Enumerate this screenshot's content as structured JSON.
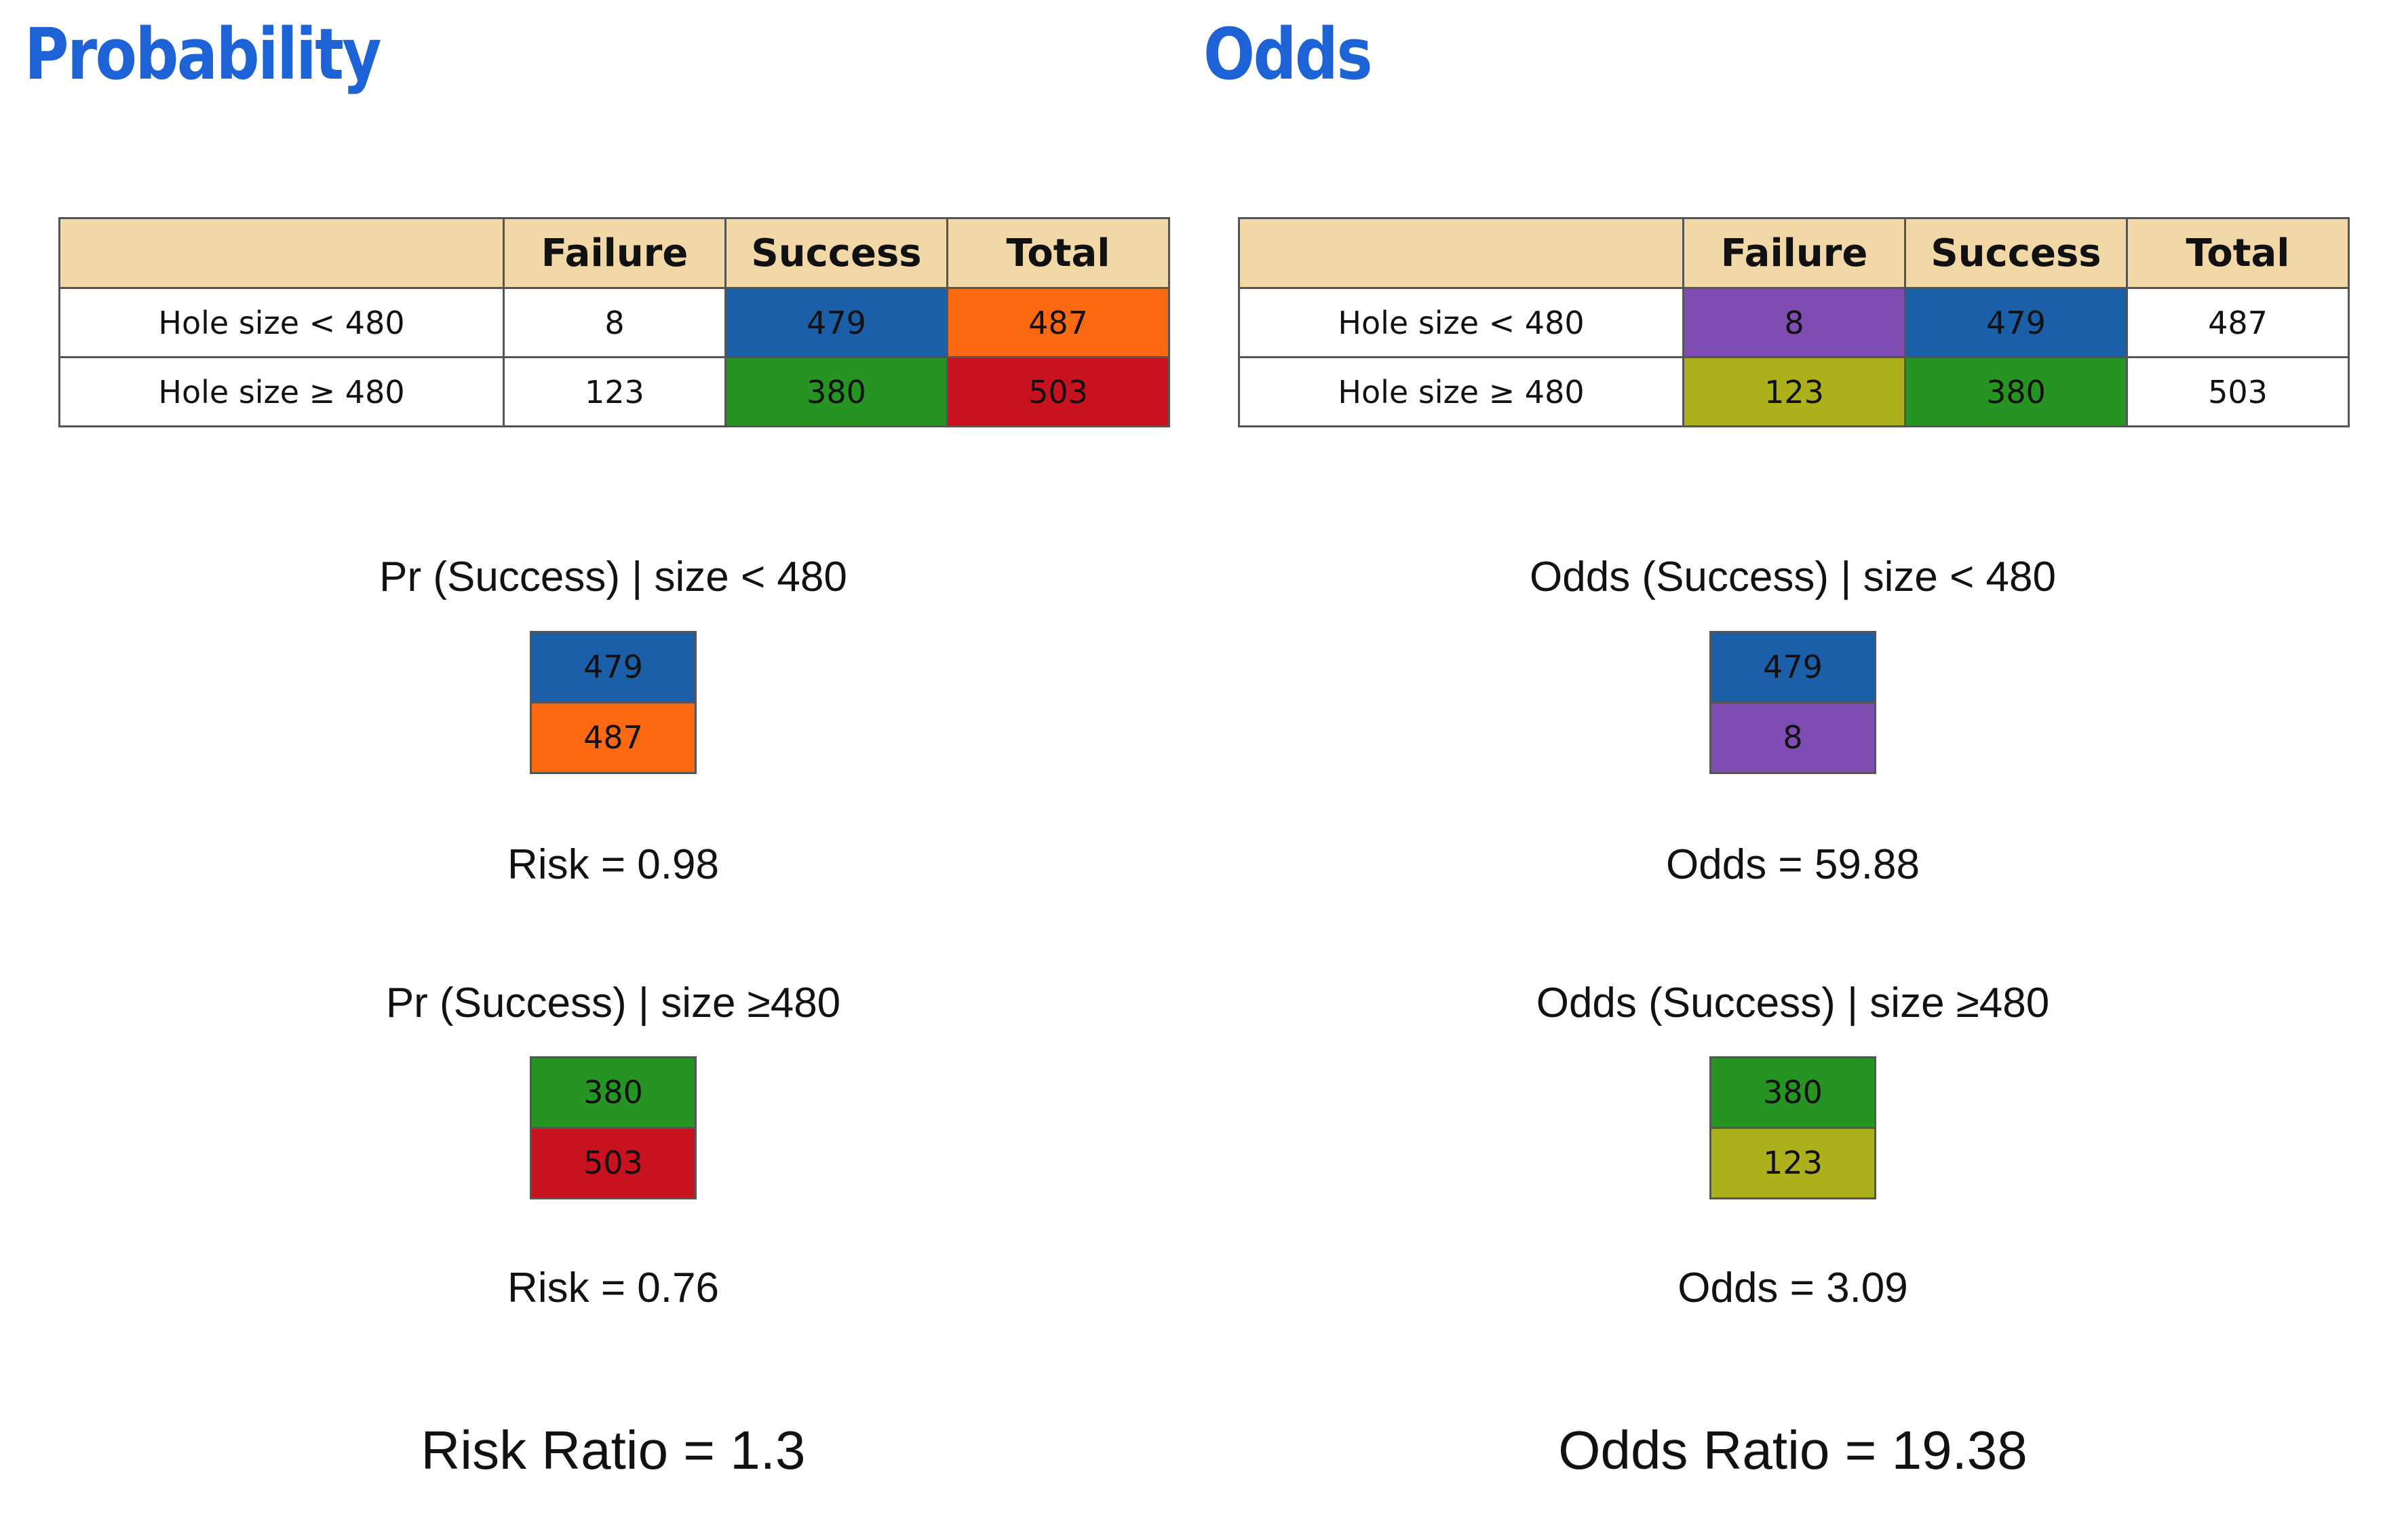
{
  "colors": {
    "heading": "#1e63d6",
    "header_bg": "#f2d8a7",
    "blue": "#1b5fa8",
    "orange": "#fb6a13",
    "green": "#269422",
    "red": "#c8121f",
    "purple": "#7f4db2",
    "olive": "#acb11b"
  },
  "probability": {
    "title": "Probability",
    "table": {
      "headers": [
        "",
        "Failure",
        "Success",
        "Total"
      ],
      "rows": [
        {
          "label": "Hole size < 480",
          "failure": "8",
          "success": "479",
          "total": "487"
        },
        {
          "label": "Hole size ≥ 480",
          "failure": "123",
          "success": "380",
          "total": "503"
        }
      ]
    },
    "calc1": {
      "label": "Pr (Success) | size < 480",
      "numerator": "479",
      "denominator": "487",
      "result": "Risk = 0.98"
    },
    "calc2": {
      "label": "Pr (Success) | size ≥480",
      "numerator": "380",
      "denominator": "503",
      "result": "Risk = 0.76"
    },
    "ratio": "Risk Ratio = 1.3"
  },
  "odds": {
    "title": "Odds",
    "table": {
      "headers": [
        "",
        "Failure",
        "Success",
        "Total"
      ],
      "rows": [
        {
          "label": "Hole size < 480",
          "failure": "8",
          "success": "479",
          "total": "487"
        },
        {
          "label": "Hole size ≥ 480",
          "failure": "123",
          "success": "380",
          "total": "503"
        }
      ]
    },
    "calc1": {
      "label": "Odds (Success) | size < 480",
      "numerator": "479",
      "denominator": "8",
      "result": "Odds = 59.88"
    },
    "calc2": {
      "label": "Odds (Success) | size ≥480",
      "numerator": "380",
      "denominator": "123",
      "result": "Odds = 3.09"
    },
    "ratio": "Odds Ratio = 19.38"
  }
}
